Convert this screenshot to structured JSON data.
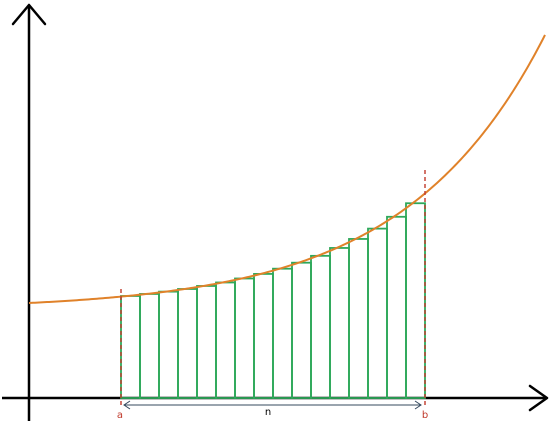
{
  "labels": {
    "a": "a",
    "b": "b",
    "n": "n"
  },
  "colors": {
    "axes": "#000000",
    "curve": "#e0822a",
    "rectangles": "#2ea85a",
    "bounds": "#c0392b",
    "measure_arrow": "#34495e",
    "background": "#ffffff"
  },
  "rectangle_count": 16
}
